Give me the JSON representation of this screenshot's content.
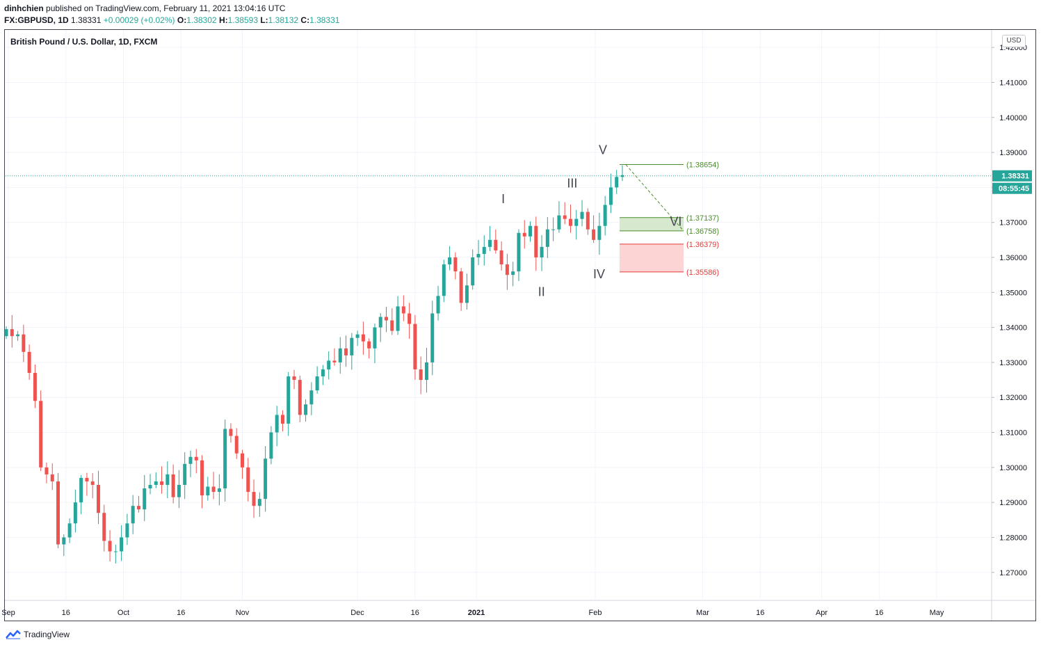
{
  "header": {
    "author": "dinhchien",
    "published_text": "published on TradingView.com, February 11, 2021 13:04:16 UTC",
    "symbol": "FX:GBPUSD, 1D",
    "last": "1.38331",
    "change": "+0.00029 (+0.02%)",
    "o_label": "O:",
    "o_value": "1.38302",
    "h_label": "H:",
    "h_value": "1.38593",
    "l_label": "L:",
    "l_value": "1.38132",
    "c_label": "C:",
    "c_value": "1.38331"
  },
  "chart_title": "British Pound / U.S. Dollar, 1D, FXCM",
  "currency": "USD",
  "price_badge": "1.38331",
  "countdown_badge": "08:55:45",
  "footer": {
    "brand": "TradingView"
  },
  "colors": {
    "up": "#26a69a",
    "down": "#ef5350",
    "green_level": "#4a8c2a",
    "red_level": "#e53935",
    "green_zone": "#d6e9cf",
    "red_zone": "#fdd4d4"
  },
  "chart_data": {
    "type": "candlestick",
    "ylim": [
      1.262,
      1.425
    ],
    "yticks": [
      "1.42000",
      "1.41000",
      "1.40000",
      "1.39000",
      "1.38000",
      "1.37000",
      "1.36000",
      "1.35000",
      "1.34000",
      "1.33000",
      "1.32000",
      "1.31000",
      "1.30000",
      "1.29000",
      "1.28000",
      "1.27000"
    ],
    "xticks": [
      {
        "label": "Sep",
        "date": "2020-09-01",
        "bold": false
      },
      {
        "label": "16",
        "date": "2020-09-16",
        "bold": false
      },
      {
        "label": "Oct",
        "date": "2020-10-01",
        "bold": false
      },
      {
        "label": "16",
        "date": "2020-10-16",
        "bold": false
      },
      {
        "label": "Nov",
        "date": "2020-11-01",
        "bold": false
      },
      {
        "label": "Dec",
        "date": "2020-12-01",
        "bold": false
      },
      {
        "label": "16",
        "date": "2020-12-16",
        "bold": false
      },
      {
        "label": "2021",
        "date": "2021-01-01",
        "bold": true
      },
      {
        "label": "Feb",
        "date": "2021-02-01",
        "bold": false
      },
      {
        "label": "Mar",
        "date": "2021-03-01",
        "bold": false
      },
      {
        "label": "16",
        "date": "2021-03-16",
        "bold": false
      },
      {
        "label": "Apr",
        "date": "2021-04-01",
        "bold": false
      },
      {
        "label": "16",
        "date": "2021-04-16",
        "bold": false
      },
      {
        "label": "May",
        "date": "2021-05-01",
        "bold": false
      }
    ],
    "close_series": [
      1.3395,
      1.3375,
      1.338,
      1.333,
      1.327,
      1.319,
      1.3,
      1.298,
      1.296,
      1.278,
      1.28,
      1.284,
      1.29,
      1.297,
      1.296,
      1.295,
      1.287,
      1.279,
      1.276,
      1.276,
      1.28,
      1.284,
      1.289,
      1.288,
      1.294,
      1.295,
      1.296,
      1.295,
      1.298,
      1.2915,
      1.295,
      1.301,
      1.303,
      1.302,
      1.292,
      1.2945,
      1.293,
      1.294,
      1.311,
      1.309,
      1.304,
      1.3,
      1.293,
      1.289,
      1.291,
      1.3025,
      1.31,
      1.315,
      1.3125,
      1.326,
      1.325,
      1.315,
      1.318,
      1.322,
      1.326,
      1.328,
      1.3305,
      1.33,
      1.334,
      1.332,
      1.337,
      1.338,
      1.336,
      1.334,
      1.34,
      1.343,
      1.342,
      1.339,
      1.346,
      1.344,
      1.341,
      1.328,
      1.325,
      1.33,
      1.344,
      1.349,
      1.358,
      1.36,
      1.356,
      1.347,
      1.352,
      1.36,
      1.361,
      1.363,
      1.365,
      1.362,
      1.358,
      1.355,
      1.356,
      1.367,
      1.366,
      1.369,
      1.36,
      1.363,
      1.368,
      1.368,
      1.372,
      1.371,
      1.369,
      1.371,
      1.373,
      1.368,
      1.365,
      1.369,
      1.375,
      1.38,
      1.383,
      1.3835
    ]
  },
  "levels": [
    {
      "label": "(1.38654)",
      "price": 1.38654,
      "color": "green"
    },
    {
      "label": "(1.37137)",
      "price": 1.37137,
      "color": "green"
    },
    {
      "label": "(1.36758)",
      "price": 1.36758,
      "color": "green"
    },
    {
      "label": "(1.36379)",
      "price": 1.36379,
      "color": "red"
    },
    {
      "label": "(1.35586)",
      "price": 1.35586,
      "color": "red"
    }
  ],
  "wave_labels": [
    {
      "text": "I",
      "date": "2021-01-08",
      "price": 1.3755
    },
    {
      "text": "II",
      "date": "2021-01-18",
      "price": 1.349
    },
    {
      "text": "III",
      "date": "2021-01-26",
      "price": 1.38
    },
    {
      "text": "IV",
      "date": "2021-02-02",
      "price": 1.354
    },
    {
      "text": "V",
      "date": "2021-02-03",
      "price": 1.3895
    },
    {
      "text": "VI",
      "date": "2021-02-22",
      "price": 1.369
    }
  ]
}
